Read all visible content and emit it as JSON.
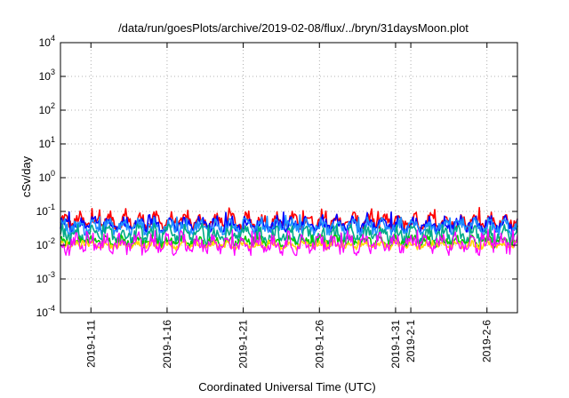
{
  "chart_data": {
    "type": "line",
    "title": "/data/run/goesPlots/archive/2019-02-08/flux/../bryn/31daysMoon.plot",
    "xlabel": "Coordinated Universal Time (UTC)",
    "ylabel": "cSv/day",
    "yscale": "log",
    "ylim": [
      0.0001,
      10000
    ],
    "y_ticks": [
      {
        "value": 0.0001,
        "base": "10",
        "exp": "-4"
      },
      {
        "value": 0.001,
        "base": "10",
        "exp": "-3"
      },
      {
        "value": 0.01,
        "base": "10",
        "exp": "-2"
      },
      {
        "value": 0.1,
        "base": "10",
        "exp": "-1"
      },
      {
        "value": 1,
        "base": "10",
        "exp": "0"
      },
      {
        "value": 10,
        "base": "10",
        "exp": "1"
      },
      {
        "value": 100,
        "base": "10",
        "exp": "2"
      },
      {
        "value": 1000,
        "base": "10",
        "exp": "3"
      },
      {
        "value": 10000,
        "base": "10",
        "exp": "4"
      }
    ],
    "xlim": [
      "2019-01-09",
      "2019-02-08"
    ],
    "x_ticks": [
      "2019-1-11",
      "2019-1-16",
      "2019-1-21",
      "2019-1-26",
      "2019-1-31",
      "2019-2-1",
      "2019-2-6"
    ],
    "grid": true,
    "legend": "none",
    "series": [
      {
        "color": "#ff0000",
        "y_min": 0.03,
        "y_typical": 0.05,
        "y_max": 0.13
      },
      {
        "color": "#0000ff",
        "y_min": 0.025,
        "y_typical": 0.04,
        "y_max": 0.1
      },
      {
        "color": "#1e90ff",
        "y_min": 0.02,
        "y_typical": 0.035,
        "y_max": 0.08
      },
      {
        "color": "#00aa88",
        "y_min": 0.01,
        "y_typical": 0.02,
        "y_max": 0.045
      },
      {
        "color": "#00cc00",
        "y_min": 0.008,
        "y_typical": 0.013,
        "y_max": 0.02
      },
      {
        "color": "#ffd700",
        "y_min": 0.007,
        "y_typical": 0.01,
        "y_max": 0.014
      },
      {
        "color": "#ff00ff",
        "y_min": 0.005,
        "y_typical": 0.011,
        "y_max": 0.03
      }
    ]
  }
}
